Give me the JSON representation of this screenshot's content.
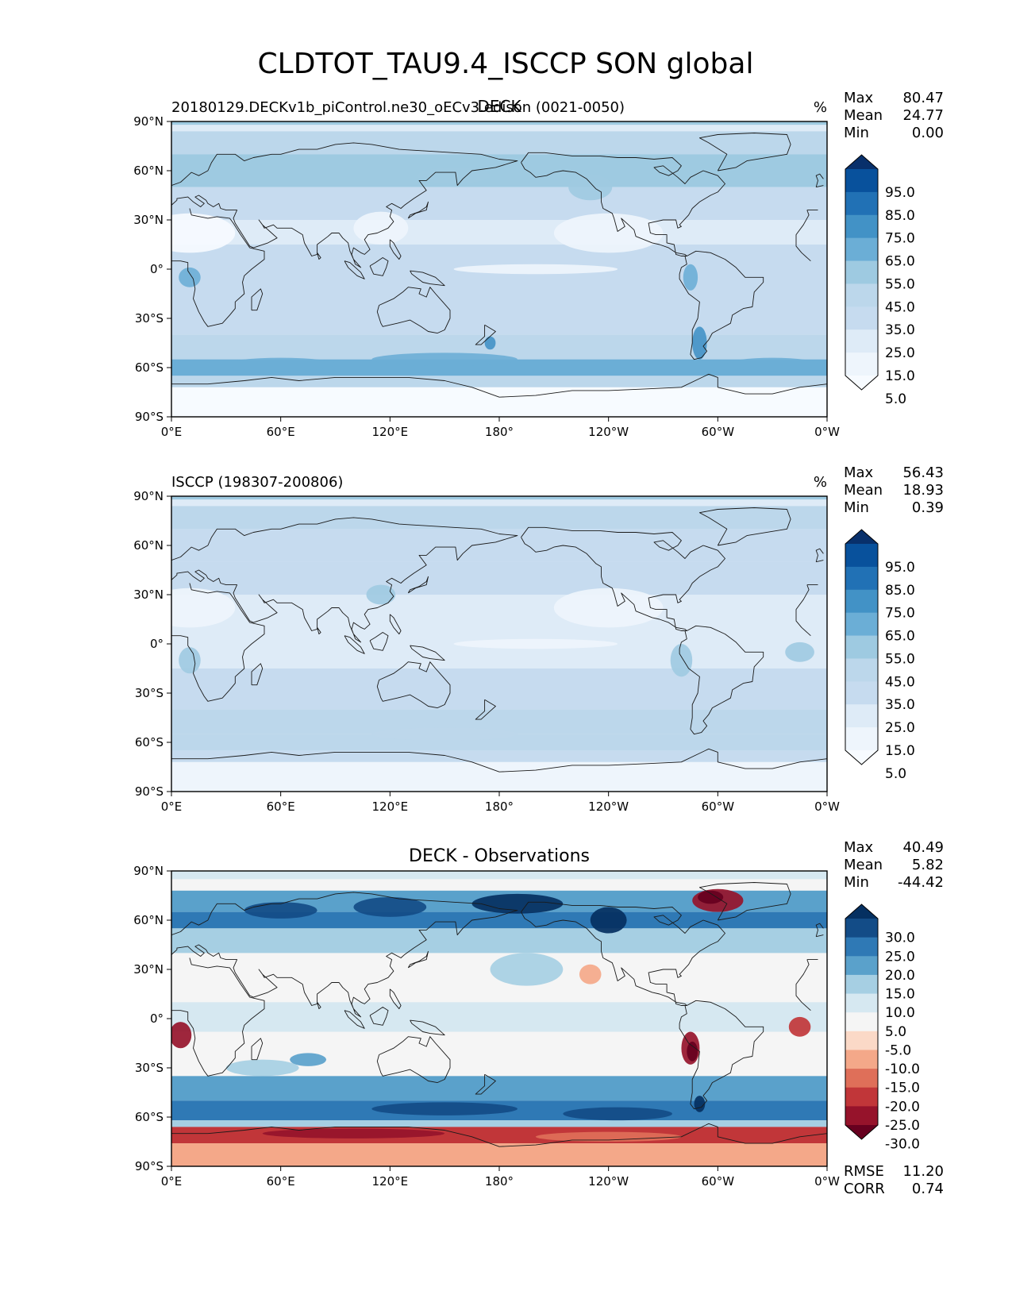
{
  "title": "CLDTOT_TAU9.4_ISCCP SON global",
  "axes": {
    "lat_ticks": [
      "90°N",
      "60°N",
      "30°N",
      "0°",
      "30°S",
      "60°S",
      "90°S"
    ],
    "lon_ticks": [
      "0°E",
      "60°E",
      "120°E",
      "180°",
      "120°W",
      "60°W",
      "0°W"
    ]
  },
  "panels": [
    {
      "id": "test",
      "left_label": "20180129.DECKv1b_piControl.ne30_oECv3.edison (0021-0050)",
      "center_label": "DECK",
      "units": "%",
      "stats": [
        {
          "label": "Max",
          "value": "80.47"
        },
        {
          "label": "Mean",
          "value": "24.77"
        },
        {
          "label": "Min",
          "value": "0.00"
        }
      ],
      "colorbar": {
        "labels": [
          "95.0",
          "85.0",
          "75.0",
          "65.0",
          "55.0",
          "45.0",
          "35.0",
          "25.0",
          "15.0",
          "5.0"
        ],
        "colors": [
          "#08306b",
          "#08519c",
          "#2171b5",
          "#4292c6",
          "#6baed6",
          "#9ecae1",
          "#bcd7eb",
          "#c6dbef",
          "#deebf7",
          "#eef5fc",
          "#f7fbff"
        ]
      }
    },
    {
      "id": "ref",
      "left_label": "ISCCP (198307-200806)",
      "center_label": "",
      "units": "%",
      "stats": [
        {
          "label": "Max",
          "value": "56.43"
        },
        {
          "label": "Mean",
          "value": "18.93"
        },
        {
          "label": "Min",
          "value": "0.39"
        }
      ],
      "colorbar": {
        "labels": [
          "95.0",
          "85.0",
          "75.0",
          "65.0",
          "55.0",
          "45.0",
          "35.0",
          "25.0",
          "15.0",
          "5.0"
        ],
        "colors": [
          "#08306b",
          "#08519c",
          "#2171b5",
          "#4292c6",
          "#6baed6",
          "#9ecae1",
          "#bcd7eb",
          "#c6dbef",
          "#deebf7",
          "#eef5fc",
          "#f7fbff"
        ]
      }
    },
    {
      "id": "diff",
      "left_label": "",
      "center_label": "DECK - Observations",
      "units": "",
      "stats": [
        {
          "label": "Max",
          "value": "40.49"
        },
        {
          "label": "Mean",
          "value": "5.82"
        },
        {
          "label": "Min",
          "value": "-44.42"
        }
      ],
      "bottom_stats": [
        {
          "label": "RMSE",
          "value": "11.20"
        },
        {
          "label": "CORR",
          "value": "0.74"
        }
      ],
      "colorbar": {
        "labels": [
          "30.0",
          "25.0",
          "20.0",
          "15.0",
          "10.0",
          "5.0",
          "-5.0",
          "-10.0",
          "-15.0",
          "-20.0",
          "-25.0",
          "-30.0"
        ],
        "colors": [
          "#053061",
          "#134c87",
          "#2f79b5",
          "#5aa1cb",
          "#a6cfe3",
          "#d6e8f1",
          "#f5f5f5",
          "#fbd9c7",
          "#f4a889",
          "#df6f59",
          "#c13639",
          "#96132b",
          "#67001f"
        ]
      }
    }
  ]
}
